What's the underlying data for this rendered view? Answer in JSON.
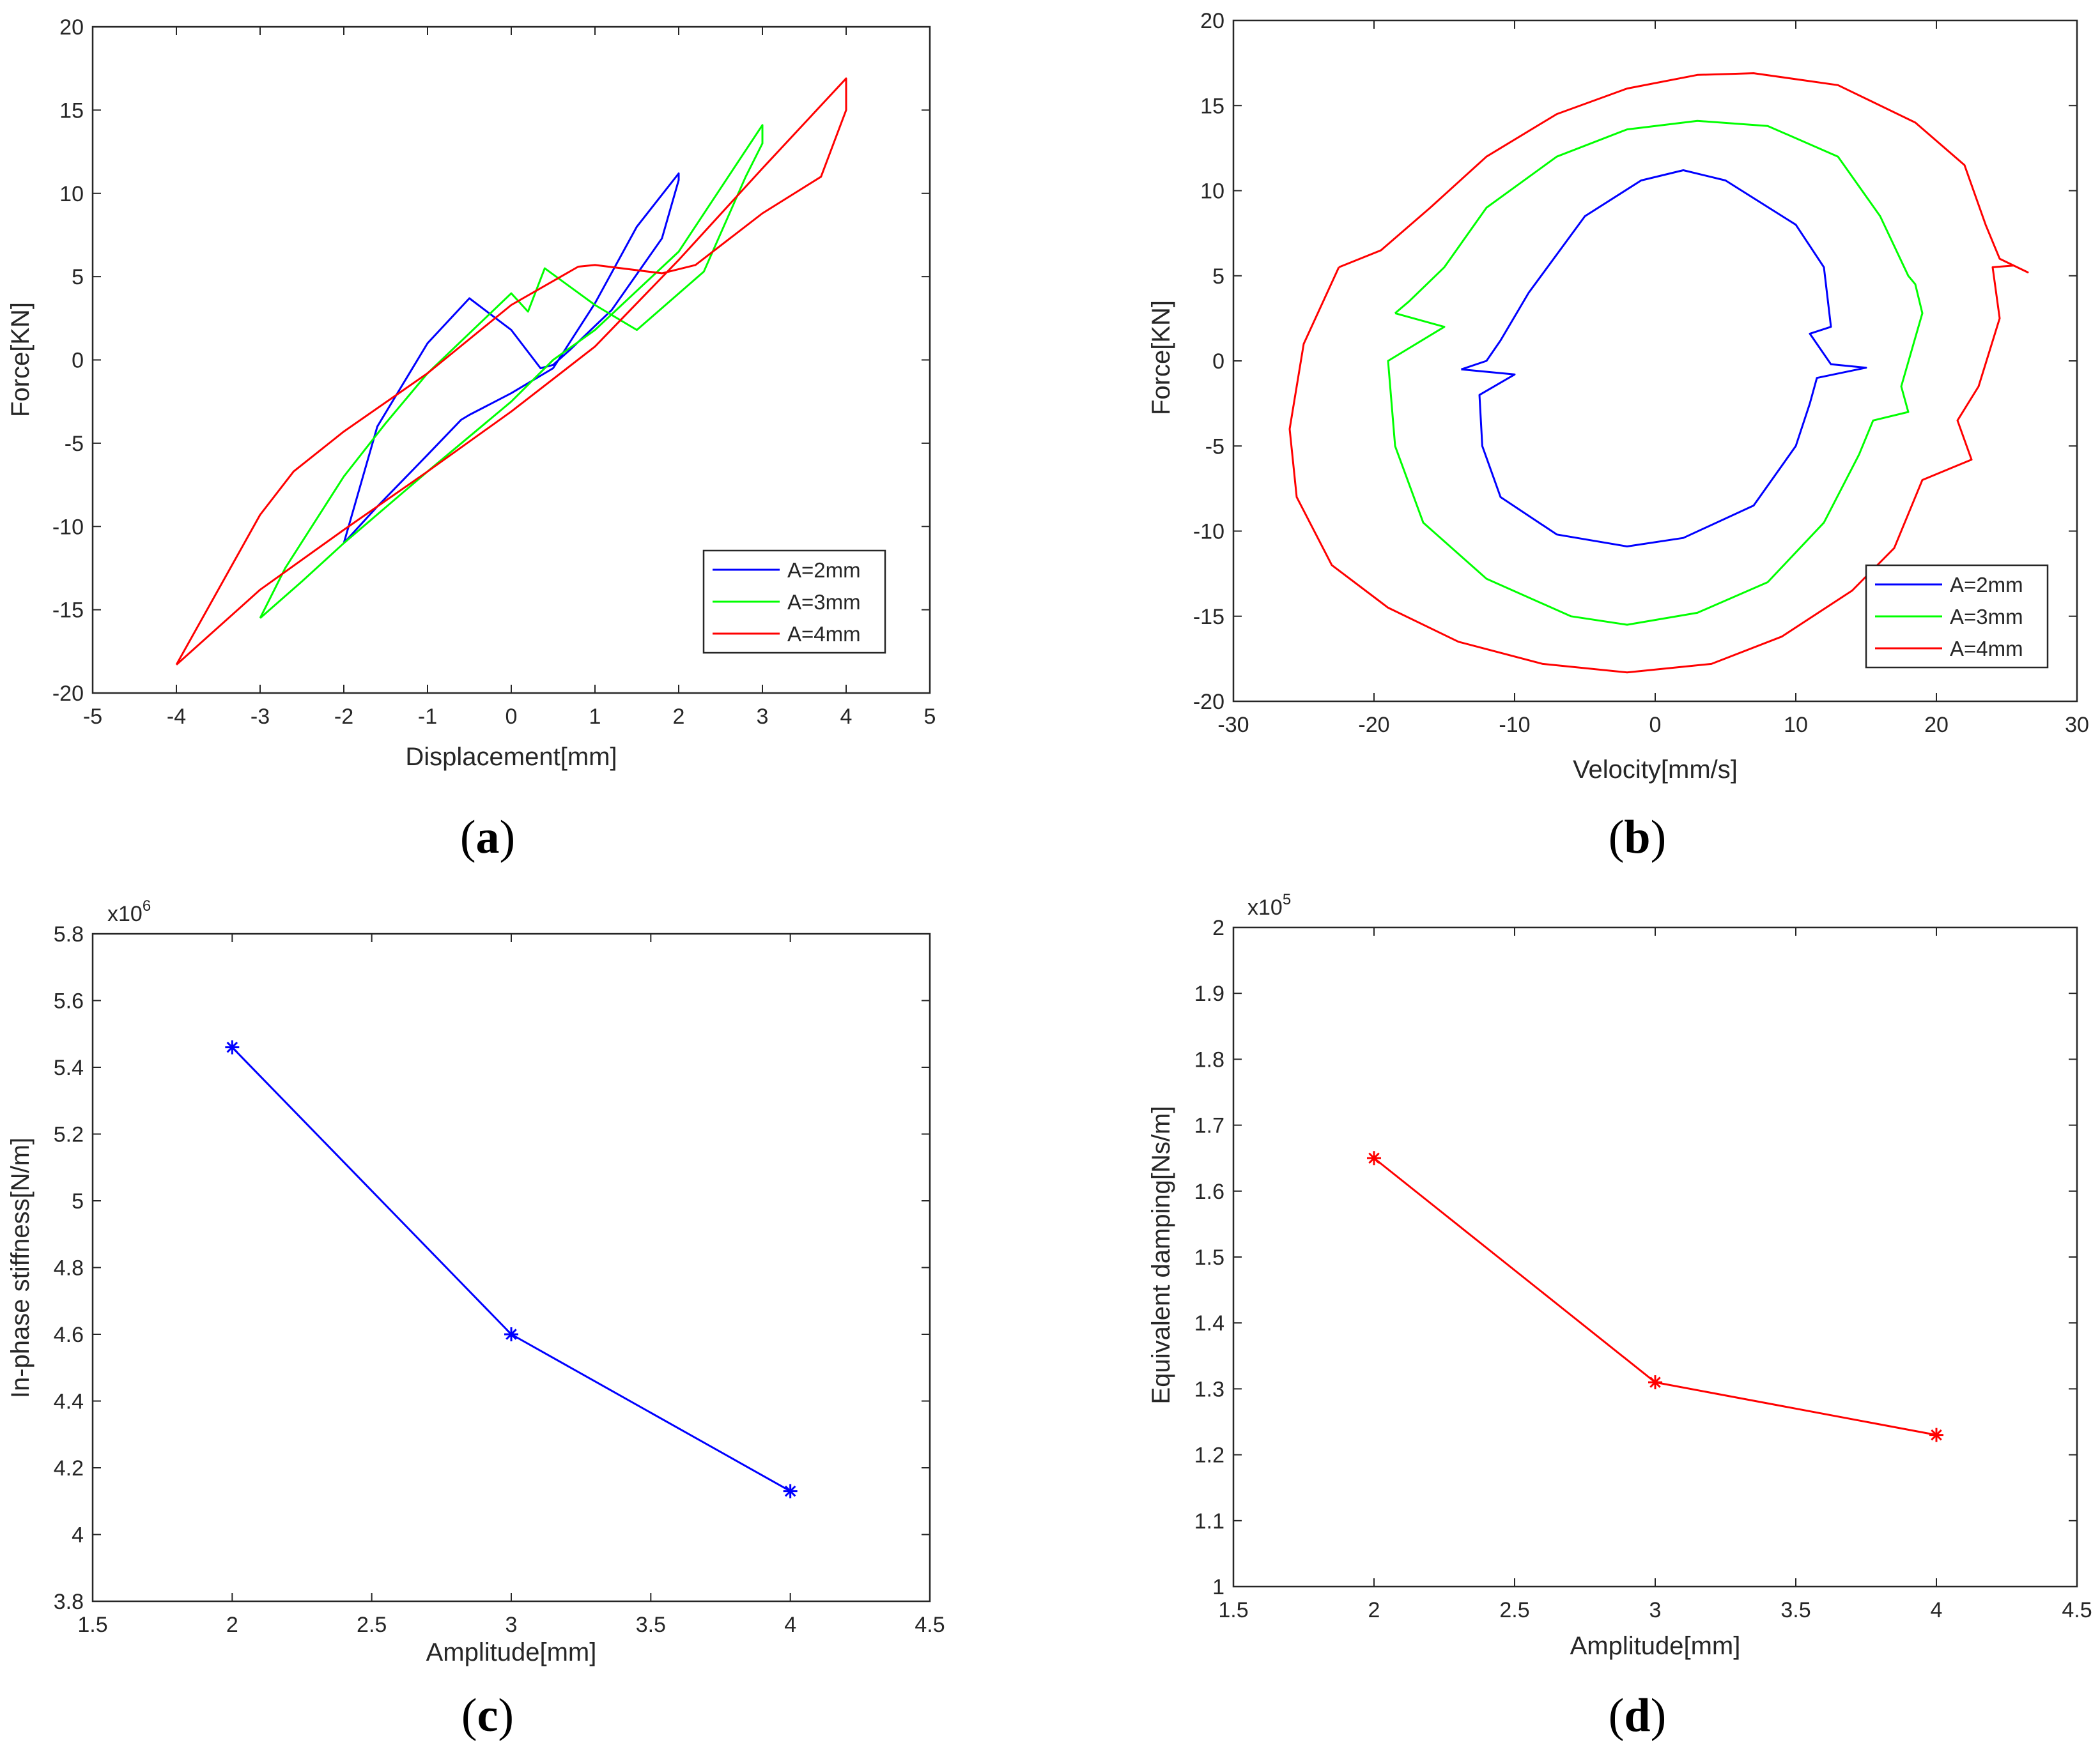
{
  "colors": {
    "blue": "#0000ff",
    "green": "#00ff00",
    "red": "#ff0000",
    "axis": "#262626"
  },
  "chart_data": [
    {
      "id": "a",
      "type": "line",
      "caption": "a",
      "xlabel": "Displacement[mm]",
      "ylabel": "Force[KN]",
      "xlim": [
        -5,
        5
      ],
      "ylim": [
        -20,
        20
      ],
      "xticks": [
        -5,
        -4,
        -3,
        -2,
        -1,
        0,
        1,
        2,
        3,
        4,
        5
      ],
      "yticks": [
        -20,
        -15,
        -10,
        -5,
        0,
        5,
        10,
        15,
        20
      ],
      "legend": "bottom-right",
      "series": [
        {
          "name": "A=2mm",
          "color": "#0000ff",
          "x": [
            -2.0,
            -1.6,
            -1.0,
            -0.6,
            -0.5,
            0.0,
            0.5,
            1.0,
            1.5,
            2.0,
            2.0,
            1.8,
            1.2,
            0.7,
            0.5,
            0.35,
            0.0,
            -0.5,
            -1.0,
            -1.6,
            -2.0
          ],
          "y": [
            -11.0,
            -8.8,
            -5.7,
            -3.6,
            -3.3,
            -2.0,
            -0.5,
            3.4,
            8.0,
            11.2,
            10.8,
            7.3,
            3.0,
            0.6,
            -0.3,
            -0.5,
            1.8,
            3.7,
            1.0,
            -4.0,
            -11.0
          ]
        },
        {
          "name": "A=3mm",
          "color": "#00ff00",
          "x": [
            -3.0,
            -2.5,
            -2.0,
            -1.0,
            0.0,
            0.5,
            1.0,
            2.0,
            3.0,
            3.0,
            2.8,
            2.3,
            1.5,
            1.0,
            0.4,
            0.2,
            0.0,
            -0.5,
            -1.0,
            -1.5,
            -2.0,
            -2.7,
            -3.0
          ],
          "y": [
            -15.5,
            -13.3,
            -11.0,
            -6.7,
            -2.5,
            0.0,
            1.8,
            6.5,
            14.1,
            13.0,
            11.0,
            5.3,
            1.8,
            3.3,
            5.5,
            2.9,
            4.0,
            1.6,
            -0.8,
            -3.8,
            -7.0,
            -12.5,
            -15.5
          ]
        },
        {
          "name": "A=4mm",
          "color": "#ff0000",
          "x": [
            -4.0,
            -3.0,
            -2.0,
            -1.0,
            0.0,
            1.0,
            2.0,
            3.0,
            4.0,
            4.0,
            3.7,
            3.0,
            2.2,
            1.8,
            1.0,
            0.8,
            0.0,
            -1.0,
            -2.0,
            -2.6,
            -3.0,
            -4.0
          ],
          "y": [
            -18.3,
            -13.8,
            -10.2,
            -6.7,
            -3.1,
            0.8,
            6.0,
            11.5,
            16.9,
            15.0,
            11.0,
            8.8,
            5.7,
            5.2,
            5.7,
            5.6,
            3.3,
            -0.8,
            -4.3,
            -6.7,
            -9.3,
            -18.3
          ]
        }
      ]
    },
    {
      "id": "b",
      "type": "line",
      "caption": "b",
      "xlabel": "Velocity[mm/s]",
      "ylabel": "Force[KN]",
      "xlim": [
        -30,
        30
      ],
      "ylim": [
        -20,
        20
      ],
      "xticks": [
        -30,
        -20,
        -10,
        0,
        10,
        20,
        30
      ],
      "yticks": [
        -20,
        -15,
        -10,
        -5,
        0,
        5,
        10,
        15,
        20
      ],
      "legend": "bottom-right",
      "series": [
        {
          "name": "A=2mm",
          "color": "#0000ff",
          "x": [
            -13.8,
            -10.0,
            -12.5,
            -12.3,
            -11.0,
            -7.0,
            -2.0,
            2.0,
            7.0,
            10.0,
            11.0,
            11.5,
            15.0,
            12.5,
            11.5,
            11.0,
            12.5,
            12.0,
            10.0,
            5.0,
            2.0,
            -1.0,
            -5.0,
            -9.0,
            -11.0,
            -12.0,
            -13.8
          ],
          "y": [
            -0.5,
            -0.8,
            -2.0,
            -5.0,
            -8.0,
            -10.2,
            -10.9,
            -10.4,
            -8.5,
            -5.0,
            -2.5,
            -1.0,
            -0.4,
            -0.2,
            1.0,
            1.6,
            2.0,
            5.5,
            8.0,
            10.6,
            11.2,
            10.6,
            8.5,
            4.0,
            1.2,
            0.0,
            -0.5
          ]
        },
        {
          "name": "A=3mm",
          "color": "#00ff00",
          "x": [
            -18.5,
            -15.0,
            -19.0,
            -18.5,
            -16.5,
            -12.0,
            -6.0,
            -2.0,
            3.0,
            8.0,
            12.0,
            14.5,
            15.5,
            18.0,
            17.5,
            19.0,
            18.5,
            18.0,
            16.0,
            13.0,
            8.0,
            3.0,
            -2.0,
            -7.0,
            -12.0,
            -15.0,
            -17.5,
            -18.5
          ],
          "y": [
            2.8,
            2.0,
            0.0,
            -5.0,
            -9.5,
            -12.8,
            -15.0,
            -15.5,
            -14.8,
            -13.0,
            -9.5,
            -5.5,
            -3.5,
            -3.0,
            -1.5,
            2.8,
            4.5,
            5.0,
            8.5,
            12.0,
            13.8,
            14.1,
            13.6,
            12.0,
            9.0,
            5.5,
            3.5,
            2.8
          ]
        },
        {
          "name": "A=4mm",
          "color": "#ff0000",
          "x": [
            -22.5,
            -25.0,
            -26.0,
            -25.5,
            -23.0,
            -19.0,
            -14.0,
            -8.0,
            -2.0,
            4.0,
            9.0,
            14.0,
            17.0,
            19.0,
            22.5,
            21.5,
            23.0,
            24.5,
            24.0,
            25.5,
            26.5,
            24.5,
            23.5,
            22.0,
            18.5,
            13.0,
            7.0,
            3.0,
            -2.0,
            -7.0,
            -12.0,
            -16.0,
            -19.5,
            -22.5
          ],
          "y": [
            5.5,
            1.0,
            -4.0,
            -8.0,
            -12.0,
            -14.5,
            -16.5,
            -17.8,
            -18.3,
            -17.8,
            -16.2,
            -13.5,
            -11.0,
            -7.0,
            -5.8,
            -3.5,
            -1.5,
            2.5,
            5.5,
            5.6,
            5.2,
            6.0,
            8.0,
            11.5,
            14.0,
            16.2,
            16.9,
            16.8,
            16.0,
            14.5,
            12.0,
            9.0,
            6.5,
            5.5
          ]
        }
      ]
    },
    {
      "id": "c",
      "type": "line",
      "caption": "c",
      "xlabel": "Amplitude[mm]",
      "ylabel": "In-phase stiffness[N/m]",
      "exponent_base": "x10",
      "exponent_power": "6",
      "xlim": [
        1.5,
        4.5
      ],
      "ylim": [
        3.8,
        5.8
      ],
      "xticks": [
        1.5,
        2,
        2.5,
        3,
        3.5,
        4,
        4.5
      ],
      "yticks": [
        3.8,
        4,
        4.2,
        4.4,
        4.6,
        4.8,
        5,
        5.2,
        5.4,
        5.6,
        5.8
      ],
      "marker": "*",
      "series": [
        {
          "name": "In-phase stiffness",
          "color": "#0000ff",
          "x": [
            2,
            3,
            4
          ],
          "y": [
            5.46,
            4.6,
            4.13
          ]
        }
      ]
    },
    {
      "id": "d",
      "type": "line",
      "caption": "d",
      "xlabel": "Amplitude[mm]",
      "ylabel": "Equivalent damping[Ns/m]",
      "exponent_base": "x10",
      "exponent_power": "5",
      "xlim": [
        1.5,
        4.5
      ],
      "ylim": [
        1,
        2
      ],
      "xticks": [
        1.5,
        2,
        2.5,
        3,
        3.5,
        4,
        4.5
      ],
      "yticks": [
        1,
        1.1,
        1.2,
        1.3,
        1.4,
        1.5,
        1.6,
        1.7,
        1.8,
        1.9,
        2
      ],
      "marker": "*",
      "series": [
        {
          "name": "Equivalent damping",
          "color": "#ff0000",
          "x": [
            2,
            3,
            4
          ],
          "y": [
            1.65,
            1.31,
            1.23
          ]
        }
      ]
    }
  ]
}
